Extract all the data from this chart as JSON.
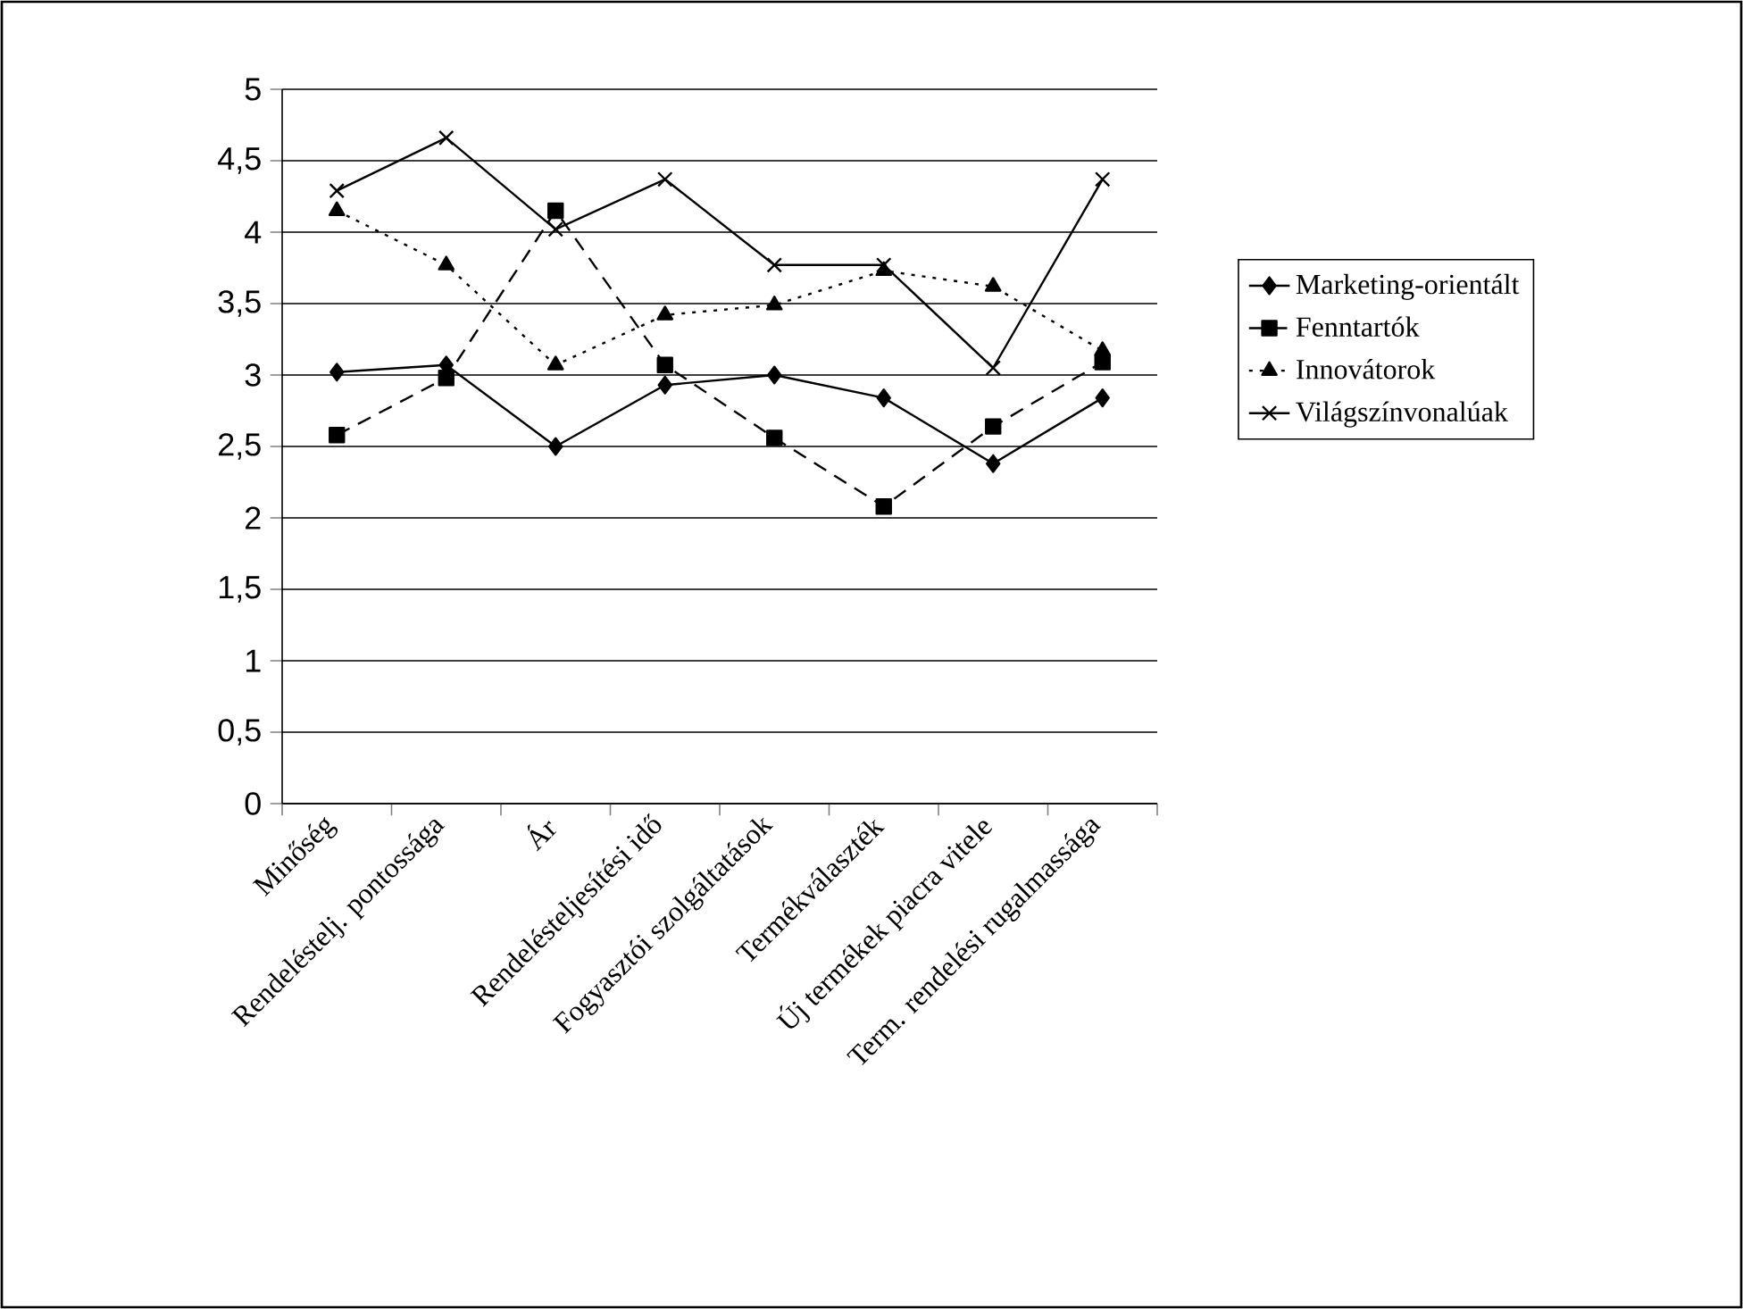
{
  "chart_data": {
    "type": "line",
    "categories": [
      "Minőség",
      "Rendeléstelj. pontossága",
      "Ár",
      "Rendelésteljesítési idő",
      "Fogyasztói szolgáltatások",
      "Termékválaszték",
      "Új termékek piacra vitele",
      "Term. rendelési rugalmassága"
    ],
    "series": [
      {
        "name": "Marketing-orientált",
        "color": "#000000",
        "marker": "diamond",
        "line_style": "solid",
        "values": [
          3.02,
          3.07,
          2.5,
          2.93,
          3.0,
          2.84,
          2.38,
          2.84
        ]
      },
      {
        "name": "Fenntartók",
        "color": "#000000",
        "marker": "square",
        "line_style": "dashed",
        "values": [
          2.58,
          2.98,
          4.15,
          3.07,
          2.56,
          2.08,
          2.64,
          3.09
        ]
      },
      {
        "name": "Innovátorok",
        "color": "#000000",
        "marker": "triangle",
        "line_style": "dotted",
        "values": [
          4.15,
          3.77,
          3.07,
          3.42,
          3.49,
          3.73,
          3.62,
          3.17
        ]
      },
      {
        "name": "Világszínvonalúak",
        "color": "#000000",
        "marker": "cross",
        "line_style": "solid",
        "values": [
          4.29,
          4.66,
          4.02,
          4.37,
          3.77,
          3.77,
          3.05,
          4.37
        ]
      }
    ],
    "ylim": [
      0,
      5
    ],
    "yticks": [
      0,
      {
        "value": 0.5,
        "label": "0,5"
      },
      1,
      {
        "value": 1.5,
        "label": "1,5"
      },
      2,
      {
        "value": 2.5,
        "label": "2,5"
      },
      3,
      {
        "value": 3.5,
        "label": "3,5"
      },
      4,
      {
        "value": 4.5,
        "label": "4,5"
      },
      5
    ],
    "grid": "y",
    "legend": "right"
  }
}
